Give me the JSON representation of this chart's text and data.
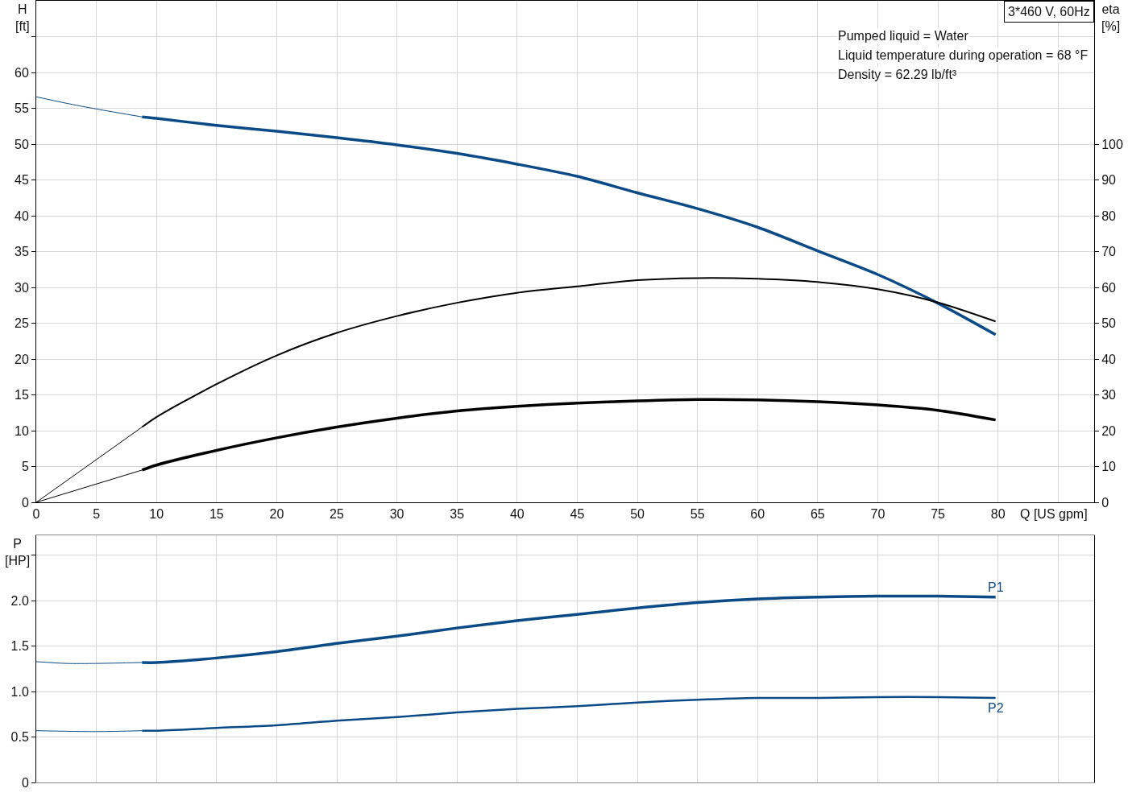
{
  "chart_data": [
    {
      "type": "line",
      "title": "3*460 V, 60Hz",
      "xlabel": "Q [US gpm]",
      "ylabel": "H\n[ft]",
      "y2label": "eta\n[%]",
      "annotations": [
        "Pumped liquid = Water",
        "Liquid temperature during operation = 68 °F",
        "Density = 62.29 lb/ft³"
      ],
      "xlim": [
        0,
        88
      ],
      "xticks": [
        0,
        5,
        10,
        15,
        20,
        25,
        30,
        35,
        40,
        45,
        50,
        55,
        60,
        65,
        70,
        75,
        80,
        {
          "value": 85,
          "label": null
        }
      ],
      "ylim": [
        0,
        70
      ],
      "yticks": [
        0,
        5,
        10,
        15,
        20,
        25,
        30,
        35,
        40,
        45,
        50,
        55,
        60,
        {
          "value": 65,
          "label": null
        }
      ],
      "y2lim": [
        0,
        140
      ],
      "y2ticks": [
        0,
        10,
        20,
        30,
        40,
        50,
        60,
        70,
        80,
        90,
        100
      ],
      "grid": true,
      "series": [
        {
          "color": "#0a4b87",
          "x": [
            8.8,
            10,
            15,
            20,
            25,
            30,
            35,
            40,
            45,
            50,
            55,
            60,
            65,
            70,
            75,
            79.8
          ],
          "values": [
            53.8,
            53.6,
            52.6,
            51.8,
            50.9,
            49.9,
            48.7,
            47.2,
            45.5,
            43.2,
            41.0,
            38.4,
            35.1,
            31.8,
            27.8,
            23.4
          ]
        },
        {
          "color": "#0a4b87",
          "x": [
            0,
            2.5,
            5,
            8.8
          ],
          "values": [
            56.6,
            55.7,
            54.9,
            53.8
          ]
        },
        {
          "color": "#000000",
          "axis": "y2",
          "x": [
            8.8,
            10,
            15,
            20,
            25,
            30,
            35,
            40,
            45,
            50,
            55,
            60,
            65,
            70,
            75,
            79.8
          ],
          "values": [
            21.0,
            23.8,
            33.0,
            41.0,
            47.3,
            52.0,
            55.7,
            58.5,
            60.3,
            62.0,
            62.6,
            62.4,
            61.5,
            59.5,
            55.8,
            50.5
          ]
        },
        {
          "color": "#000000",
          "axis": "y2",
          "x": [
            0,
            8.8
          ],
          "values": [
            0,
            21.0
          ]
        },
        {
          "color": "#000000",
          "axis": "y2",
          "x": [
            8.8,
            10,
            15,
            20,
            25,
            30,
            35,
            40,
            45,
            50,
            55,
            60,
            65,
            70,
            75,
            79.8
          ],
          "values": [
            9.0,
            10.4,
            14.5,
            18.0,
            21.0,
            23.5,
            25.5,
            26.8,
            27.7,
            28.3,
            28.7,
            28.6,
            28.1,
            27.2,
            25.7,
            23.0
          ]
        },
        {
          "color": "#000000",
          "axis": "y2",
          "x": [
            0,
            8.8
          ],
          "values": [
            0,
            9.0
          ]
        }
      ]
    },
    {
      "type": "line",
      "ylabel": "P\n[HP]",
      "xlim": [
        0,
        88
      ],
      "xticks": [
        0,
        5,
        10,
        15,
        20,
        25,
        30,
        35,
        40,
        45,
        50,
        55,
        60,
        65,
        70,
        75,
        80,
        85
      ],
      "ylim": [
        0,
        2.72
      ],
      "yticks": [
        0,
        0.5,
        {
          "value": 1,
          "label": "1.0"
        },
        1.5,
        {
          "value": 2,
          "label": "2.0"
        },
        {
          "value": 2.5,
          "label": null
        }
      ],
      "tick_labels": "y",
      "grid": true,
      "series": [
        {
          "name": "P1",
          "color": "#0a4b87",
          "x": [
            8.8,
            10,
            15,
            20,
            25,
            30,
            35,
            40,
            45,
            50,
            55,
            60,
            65,
            70,
            75,
            79.8
          ],
          "values": [
            1.32,
            1.32,
            1.37,
            1.44,
            1.53,
            1.61,
            1.7,
            1.78,
            1.85,
            1.92,
            1.98,
            2.02,
            2.04,
            2.05,
            2.05,
            2.04
          ]
        },
        {
          "color": "#0a4b87",
          "x": [
            0,
            2.5,
            5,
            8.8
          ],
          "values": [
            1.33,
            1.31,
            1.31,
            1.32
          ]
        },
        {
          "name": "P2",
          "color": "#0a4b87",
          "x": [
            8.8,
            10,
            15,
            20,
            25,
            30,
            35,
            40,
            45,
            50,
            55,
            60,
            65,
            70,
            75,
            79.8
          ],
          "values": [
            0.57,
            0.57,
            0.6,
            0.63,
            0.68,
            0.72,
            0.77,
            0.81,
            0.84,
            0.88,
            0.91,
            0.93,
            0.93,
            0.94,
            0.94,
            0.93
          ]
        },
        {
          "color": "#0a4b87",
          "x": [
            0,
            5,
            8.8
          ],
          "values": [
            0.57,
            0.56,
            0.57
          ]
        }
      ]
    }
  ]
}
